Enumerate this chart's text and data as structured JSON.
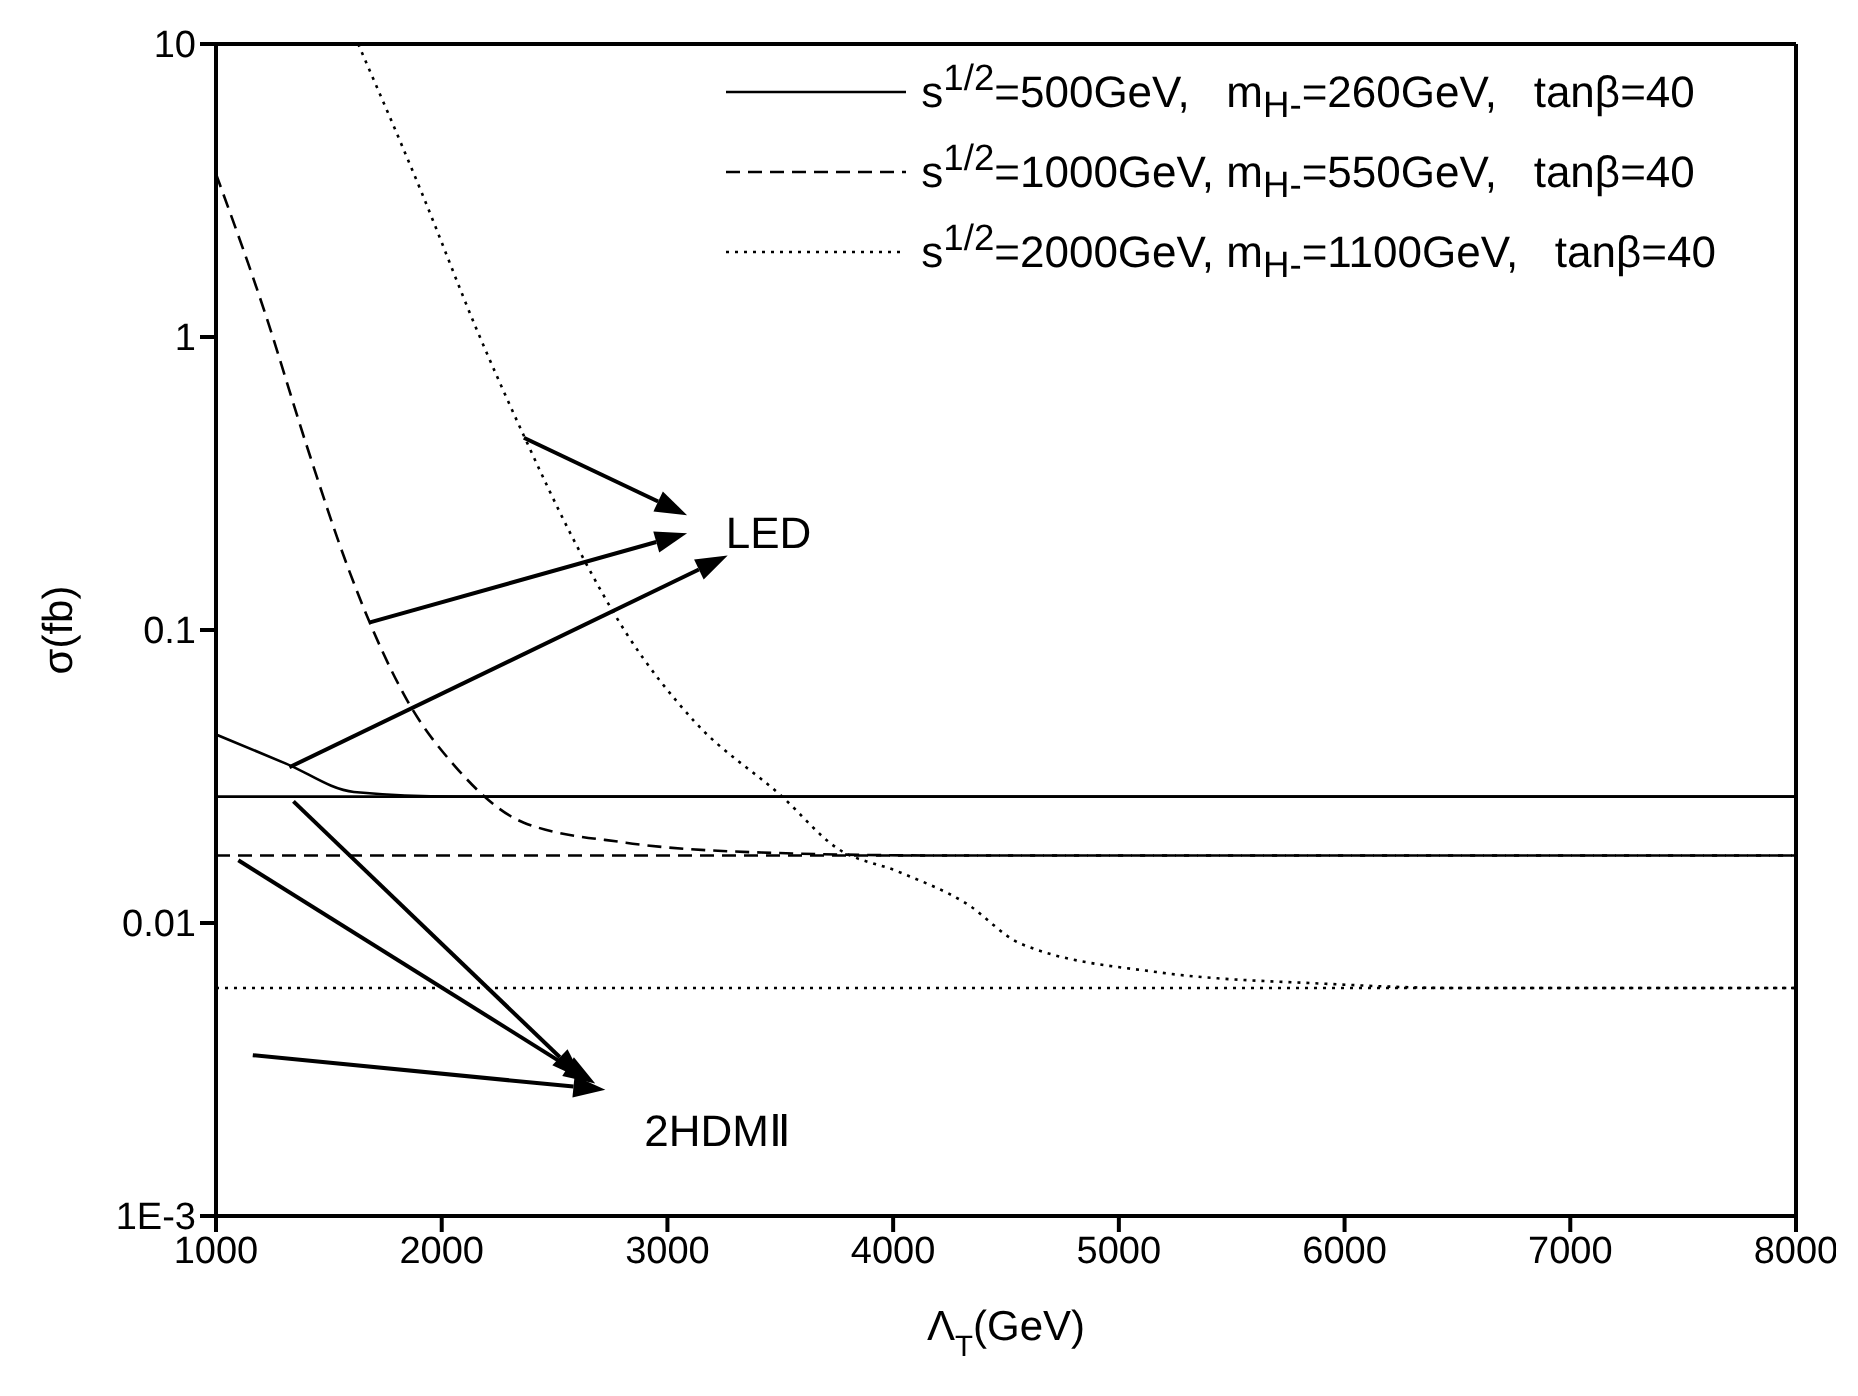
{
  "chart_data": {
    "type": "line",
    "xlabel": "Λ$_{T}$(GeV)",
    "ylabel": "σ(fb)",
    "log": "y",
    "xlim": [
      1000,
      8000
    ],
    "xticks": [
      1000,
      2000,
      3000,
      4000,
      5000,
      6000,
      7000,
      8000
    ],
    "ylim": [
      0.001,
      10
    ],
    "yticks": [
      {
        "value": 0.001,
        "label": "1E-3"
      },
      0.01,
      0.1,
      1,
      10
    ],
    "grid": false,
    "legend": "top right",
    "marker": "none",
    "annotations": [
      {
        "text": "LED",
        "x": 1325,
        "y": 0.034
      },
      "2HDMⅡ"
    ],
    "series": [
      {
        "name": "s$^{1/2}$=500GeV,   m$_{H-}$=260GeV,   tanβ=40",
        "color": "#000000",
        "line_style": "solid",
        "x": [
          1000,
          1310,
          1611,
          2063,
          3000,
          8000
        ],
        "values": [
          0.044,
          0.035,
          0.028,
          0.027,
          0.027,
          0.027
        ]
      },
      {
        "name": "s$^{1/2}$=1000GeV, m$_{H-}$=550GeV,   tanβ=40",
        "color": "#000000",
        "line_style": "dashed",
        "x": [
          1000,
          1220,
          1400,
          1580,
          1700,
          1850,
          2063,
          2364,
          2816,
          3418,
          4200,
          8000
        ],
        "values": [
          3.6,
          1.19,
          0.43,
          0.167,
          0.098,
          0.057,
          0.034,
          0.022,
          0.0188,
          0.0174,
          0.017,
          0.017
        ]
      },
      {
        "name": "s$^{1/2}$=2000GeV, m$_{H-}$=1100GeV,   tanβ=40",
        "color": "#000000",
        "line_style": "dotted",
        "x": [
          1630,
          1912,
          2153,
          2364,
          2575,
          2816,
          3117,
          3508,
          3752,
          4020,
          4321,
          4565,
          5167,
          5919,
          6500,
          8000
        ],
        "values": [
          10,
          3.1,
          1.07,
          0.46,
          0.21,
          0.098,
          0.049,
          0.027,
          0.018,
          0.015,
          0.0117,
          0.0085,
          0.0068,
          0.0062,
          0.006,
          0.006
        ]
      },
      {
        "color": "#000000",
        "line_style": "solid",
        "x": [
          1000,
          8000
        ],
        "values": [
          0.027,
          0.027
        ]
      },
      {
        "color": "#000000",
        "line_style": "dashed",
        "x": [
          1000,
          8000
        ],
        "values": [
          0.017,
          0.017
        ]
      },
      {
        "color": "#000000",
        "line_style": "dotted",
        "x": [
          1000,
          8000
        ],
        "values": [
          0.006,
          0.006
        ]
      }
    ]
  }
}
